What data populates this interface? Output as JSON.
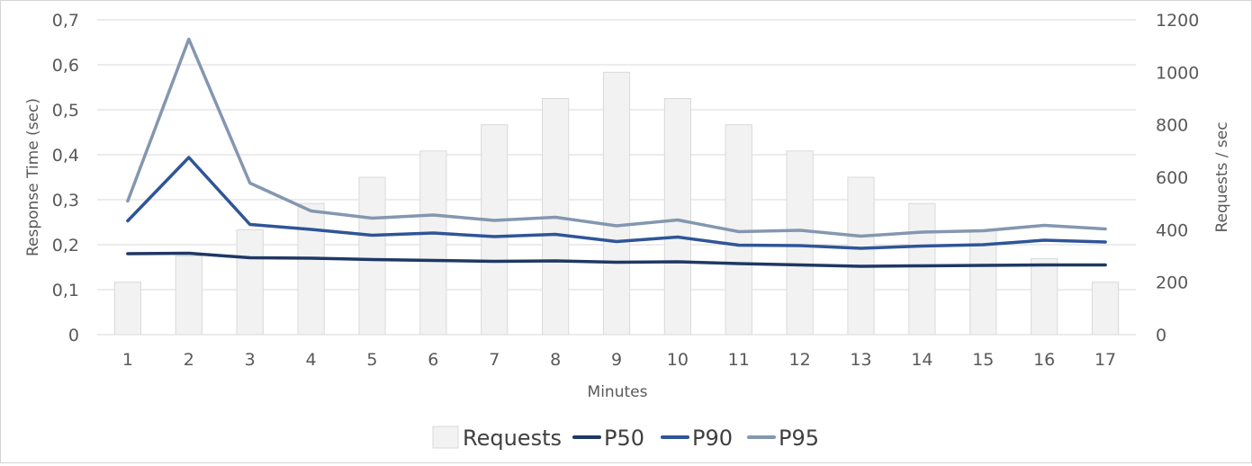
{
  "chart_data": {
    "type": "bar+line",
    "x": [
      1,
      2,
      3,
      4,
      5,
      6,
      7,
      8,
      9,
      10,
      11,
      12,
      13,
      14,
      15,
      16,
      17
    ],
    "xlabel": "Minutes",
    "ylabel_left": "Response Time (sec)",
    "ylabel_right": "Requests / sec",
    "ylim_left": [
      0,
      0.7
    ],
    "ylim_right": [
      0,
      1200
    ],
    "yticks_left": [
      "0",
      "0,1",
      "0,2",
      "0,3",
      "0,4",
      "0,5",
      "0,6",
      "0,7"
    ],
    "yticks_right": [
      "0",
      "200",
      "400",
      "600",
      "800",
      "1000",
      "1200"
    ],
    "grid": true,
    "legend_position": "bottom",
    "bars": {
      "name": "Requests",
      "axis": "right",
      "color": "#f2f2f2",
      "values": [
        200,
        300,
        400,
        500,
        600,
        700,
        800,
        900,
        1000,
        900,
        800,
        700,
        600,
        500,
        400,
        290,
        200
      ]
    },
    "series": [
      {
        "name": "P50",
        "axis": "left",
        "color": "#1f3864",
        "values": [
          0.18,
          0.181,
          0.171,
          0.17,
          0.167,
          0.165,
          0.163,
          0.164,
          0.161,
          0.162,
          0.158,
          0.155,
          0.152,
          0.153,
          0.154,
          0.155,
          0.155
        ]
      },
      {
        "name": "P90",
        "axis": "left",
        "color": "#2f5597",
        "values": [
          0.253,
          0.394,
          0.245,
          0.234,
          0.221,
          0.226,
          0.218,
          0.223,
          0.207,
          0.217,
          0.199,
          0.198,
          0.192,
          0.197,
          0.2,
          0.21,
          0.206
        ]
      },
      {
        "name": "P95",
        "axis": "left",
        "color": "#8497b0",
        "values": [
          0.297,
          0.657,
          0.337,
          0.275,
          0.259,
          0.266,
          0.254,
          0.261,
          0.242,
          0.255,
          0.229,
          0.232,
          0.219,
          0.228,
          0.231,
          0.243,
          0.235
        ]
      }
    ]
  }
}
